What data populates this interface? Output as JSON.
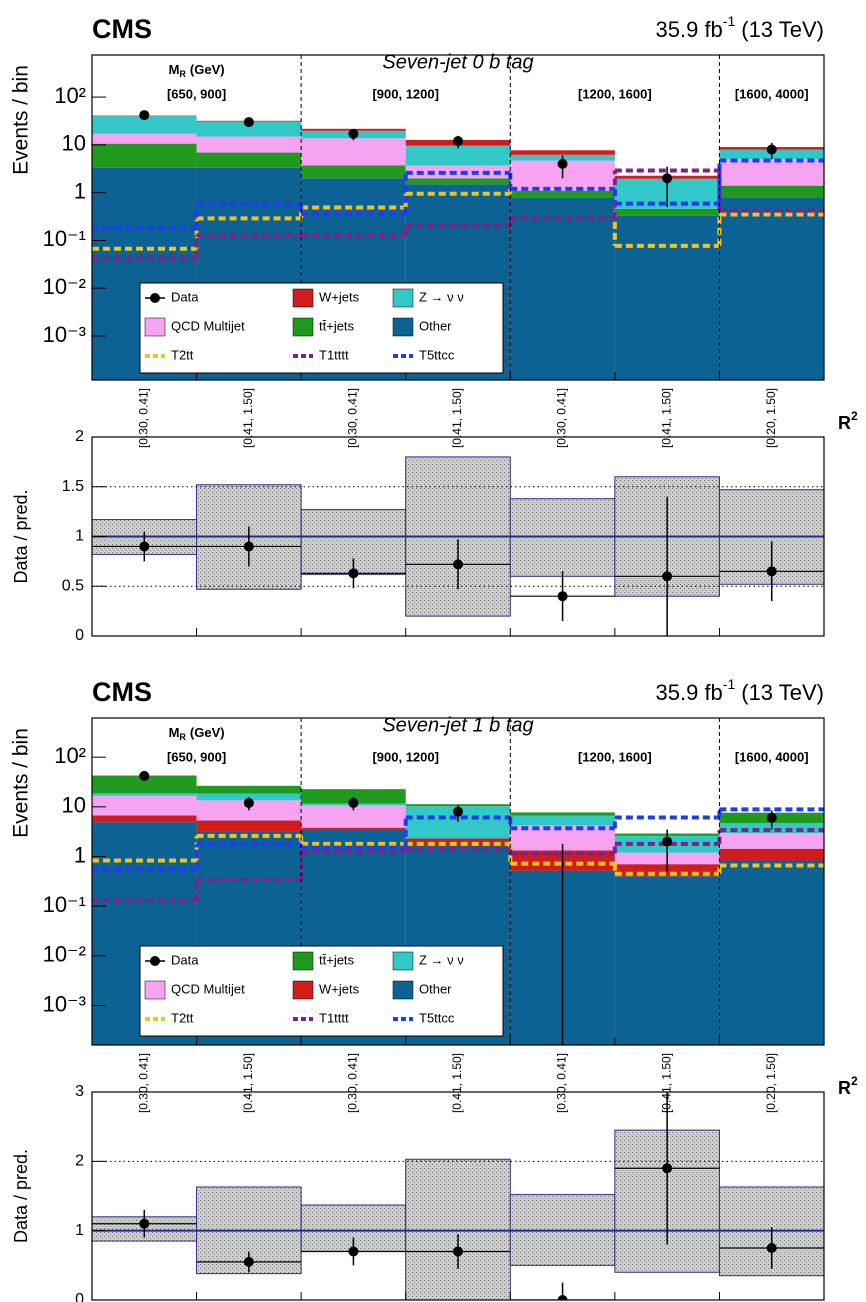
{
  "chart_data": [
    {
      "type": "bar",
      "stacked": true,
      "log_y": true,
      "title": "CMS",
      "subtitle": "Seven-jet 0 b tag",
      "lumi": "35.9 fb",
      "lumi_sup": "-1",
      "energy": "(13 TeV)",
      "ylabel": "Events / bin",
      "xlabel": "R",
      "xlabel_sup": "2",
      "mr_label": "M",
      "mr_sub": "R",
      "mr_unit": "(GeV)",
      "mr_ranges": [
        "[650, 900]",
        "[900, 1200]",
        "[1200, 1600]",
        "[1600, 4000]"
      ],
      "categories": [
        "[0.30, 0.41]",
        "[0.41, 1.50]",
        "[0.30, 0.41]",
        "[0.41, 1.50]",
        "[0.30, 0.41]",
        "[0.41, 1.50]",
        "[0.20, 1.50]"
      ],
      "ylim": [
        0.00012,
        760
      ],
      "yticks": [
        {
          "value": 0.001,
          "label": "10⁻³"
        },
        {
          "value": 0.01,
          "label": "10⁻²"
        },
        {
          "value": 0.1,
          "label": "10⁻¹"
        },
        1,
        10,
        {
          "value": 100,
          "label": "10²"
        }
      ],
      "series": [
        {
          "name": "Data",
          "style": "points",
          "color": "#000000",
          "values": [
            42,
            30,
            17,
            12,
            4,
            2,
            8
          ],
          "errors": [
            7,
            6,
            4.5,
            3.5,
            2,
            1.5,
            3
          ]
        },
        {
          "name": "W+jets",
          "style": "fill",
          "color": "#d01c1c",
          "values": [
            1,
            1,
            2,
            3,
            1.5,
            0.3,
            1
          ]
        },
        {
          "name": "Z → ν ν",
          "style": "fill",
          "color": "#33c8c8",
          "values": [
            23,
            16,
            6,
            6,
            1.5,
            1.5,
            3
          ]
        },
        {
          "name": "QCD Multijet",
          "style": "fill",
          "color": "#f6a3f2",
          "values": [
            6.4,
            8,
            10,
            1.7,
            3.6,
            0,
            3.6
          ]
        },
        {
          "name": "tt̄+jets",
          "style": "fill",
          "color": "#1f9a1f",
          "values": [
            7.3,
            3.6,
            1.7,
            0.5,
            0.3,
            0.13,
            0.6
          ]
        },
        {
          "name": "Other",
          "style": "fill",
          "color": "#0d6294",
          "values": [
            3.3,
            3.3,
            2,
            1.5,
            0.8,
            0.33,
            0.8
          ]
        },
        {
          "name": "T2tt",
          "style": "step",
          "color": "#f4c21c",
          "values": [
            0.067,
            0.29,
            0.49,
            0.95,
            1.2,
            0.077,
            0.35
          ]
        },
        {
          "name": "T1tttt",
          "style": "step",
          "color": "#7b2388",
          "values": [
            0.042,
            0.13,
            0.13,
            0.2,
            0.29,
            2.9,
            0.42
          ]
        },
        {
          "name": "T5ttcc",
          "style": "step",
          "color": "#1e3cf0",
          "values": [
            0.18,
            0.56,
            0.36,
            2.6,
            1.2,
            0.59,
            4.7
          ]
        }
      ]
    },
    {
      "type": "errorbar",
      "ylabel": "Data / pred.",
      "ylim": [
        0,
        2
      ],
      "yticks": [
        0,
        0.5,
        1,
        1.5,
        2
      ],
      "reference": 1,
      "grid": true,
      "values": [
        0.9,
        0.9,
        0.63,
        0.72,
        0.4,
        0.6,
        0.65
      ],
      "errors": [
        0.15,
        0.2,
        0.15,
        0.25,
        0.25,
        0.8,
        0.3
      ],
      "band_low": [
        0.82,
        0.47,
        0.62,
        0.2,
        0.6,
        0.4,
        0.52
      ],
      "band_high": [
        1.17,
        1.52,
        1.27,
        1.8,
        1.38,
        1.6,
        1.47
      ]
    },
    {
      "type": "bar",
      "stacked": true,
      "log_y": true,
      "title": "CMS",
      "subtitle": "Seven-jet 1 b tag",
      "lumi": "35.9 fb",
      "lumi_sup": "-1",
      "energy": "(13 TeV)",
      "ylabel": "Events / bin",
      "xlabel": "R",
      "xlabel_sup": "2",
      "mr_label": "M",
      "mr_sub": "R",
      "mr_unit": "(GeV)",
      "mr_ranges": [
        "[650, 900]",
        "[900, 1200]",
        "[1200, 1600]",
        "[1600, 4000]"
      ],
      "categories": [
        "[0.30, 0.41]",
        "[0.41, 1.50]",
        "[0.30, 0.41]",
        "[0.41, 1.50]",
        "[0.30, 0.41]",
        "[0.41, 1.50]",
        "[0.20, 1.50]"
      ],
      "ylim": [
        0.00016,
        615
      ],
      "yticks": [
        {
          "value": 0.001,
          "label": "10⁻³"
        },
        {
          "value": 0.01,
          "label": "10⁻²"
        },
        {
          "value": 0.1,
          "label": "10⁻¹"
        },
        1,
        10,
        {
          "value": 100,
          "label": "10²"
        }
      ],
      "series": [
        {
          "name": "Data",
          "style": "points",
          "color": "#000000",
          "values": [
            42,
            12,
            12,
            8,
            0,
            2,
            6
          ],
          "errors": [
            7,
            3.5,
            3.5,
            3,
            1.8,
            1.5,
            2.5
          ]
        },
        {
          "name": "tt̄+jets",
          "style": "fill",
          "color": "#1f9a1f",
          "values": [
            24,
            8,
            11,
            1,
            1.1,
            0.3,
            2.9
          ]
        },
        {
          "name": "Z → ν ν",
          "style": "fill",
          "color": "#33c8c8",
          "values": [
            2,
            5,
            1,
            8,
            2.4,
            1.4,
            1.8
          ]
        },
        {
          "name": "QCD Multijet",
          "style": "fill",
          "color": "#f6a3f2",
          "values": [
            10,
            8.2,
            6.9,
            0,
            2.9,
            0.5,
            1.5
          ]
        },
        {
          "name": "W+jets",
          "style": "fill",
          "color": "#d01c1c",
          "values": [
            1.8,
            2.1,
            0.3,
            0.6,
            0.8,
            0.3,
            0.6
          ]
        },
        {
          "name": "Other",
          "style": "fill",
          "color": "#0d6294",
          "values": [
            4.9,
            3.2,
            3.5,
            1.7,
            0.52,
            0.4,
            0.83
          ]
        },
        {
          "name": "T2tt",
          "style": "step",
          "color": "#f4c21c",
          "values": [
            0.83,
            2.6,
            1.8,
            1.8,
            0.72,
            0.45,
            0.66
          ]
        },
        {
          "name": "T1tttt",
          "style": "step",
          "color": "#7b2388",
          "values": [
            0.13,
            0.34,
            1.26,
            1.4,
            1.15,
            1.8,
            3.4
          ]
        },
        {
          "name": "T5ttcc",
          "style": "step",
          "color": "#1e3cf0",
          "values": [
            0.55,
            1.75,
            1.5,
            6.1,
            3.7,
            6.1,
            8.9
          ]
        }
      ]
    },
    {
      "type": "errorbar",
      "ylabel": "Data / pred.",
      "ylim": [
        0,
        3
      ],
      "yticks": [
        0,
        1,
        2,
        3
      ],
      "reference": 1,
      "grid": true,
      "values": [
        1.1,
        0.55,
        0.7,
        0.7,
        0,
        1.9,
        0.75
      ],
      "errors": [
        0.2,
        0.15,
        0.2,
        0.25,
        0.25,
        1.1,
        0.3
      ],
      "band_low": [
        0.85,
        0.38,
        0.7,
        0,
        0.5,
        0.4,
        0.35
      ],
      "band_high": [
        1.2,
        1.63,
        1.37,
        2.03,
        1.52,
        2.45,
        1.63
      ]
    }
  ]
}
